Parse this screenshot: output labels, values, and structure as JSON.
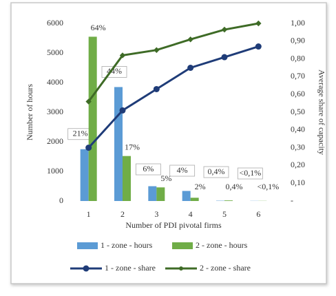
{
  "chart_data": {
    "type": "bar-line",
    "x_label": "Number of PDI pivotal firms",
    "y_label": "Number of hours",
    "y2_label": "Average share of capacity",
    "categories": [
      "1",
      "2",
      "3",
      "4",
      "5",
      "6"
    ],
    "ylim": [
      0,
      6000
    ],
    "yticks": [
      0,
      1000,
      2000,
      3000,
      4000,
      5000,
      6000
    ],
    "y2lim": [
      0,
      1
    ],
    "y2ticks": [
      {
        "value": 0,
        "label": "-"
      },
      {
        "value": 0.1,
        "label": "0,10"
      },
      {
        "value": 0.2,
        "label": "0,20"
      },
      {
        "value": 0.3,
        "label": "0,30"
      },
      {
        "value": 0.4,
        "label": "0,40"
      },
      {
        "value": 0.5,
        "label": "0,50"
      },
      {
        "value": 0.6,
        "label": "0,60"
      },
      {
        "value": 0.7,
        "label": "0,70"
      },
      {
        "value": 0.8,
        "label": "0,80"
      },
      {
        "value": 0.9,
        "label": "0,90"
      },
      {
        "value": 1,
        "label": "1,00"
      }
    ],
    "legend": "bottom",
    "series": [
      {
        "name": "1 - zone - hours",
        "kind": "bar",
        "color": "#5b9bd5",
        "values": [
          1750,
          3850,
          500,
          340,
          10,
          5
        ],
        "percent_labels": [
          "21%",
          "44%",
          "6%",
          "4%",
          "0,4%",
          "<0,1%"
        ]
      },
      {
        "name": "2 - zone - hours",
        "kind": "bar",
        "color": "#70ad47",
        "values": [
          5550,
          1520,
          460,
          110,
          20,
          5
        ],
        "percent_labels": [
          "64%",
          "17%",
          "5%",
          "2%",
          "0,4%",
          "<0,1%"
        ]
      },
      {
        "name": "1 - zone - share",
        "kind": "line",
        "axis": "y2",
        "color": "#1f3c78",
        "values": [
          0.3,
          0.51,
          0.63,
          0.75,
          0.81,
          0.87
        ]
      },
      {
        "name": "2 - zone - share",
        "kind": "line",
        "axis": "y2",
        "color": "#3e6b26",
        "values": [
          0.56,
          0.82,
          0.85,
          0.91,
          0.965,
          1.0
        ]
      }
    ]
  }
}
